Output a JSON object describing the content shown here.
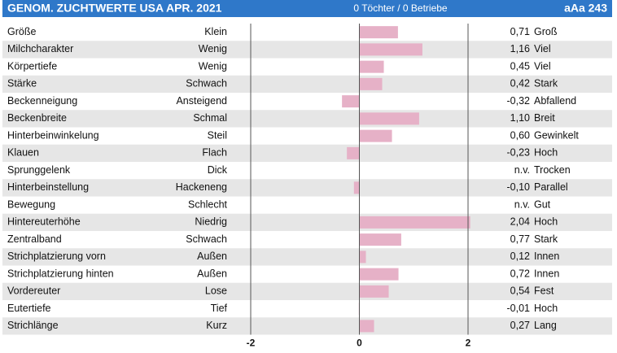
{
  "chart_data": {
    "type": "bar",
    "orientation": "horizontal",
    "title": "GENOM. ZUCHTWERTE USA APR. 2021",
    "subtitle": "0 Töchter / 0 Betriebe",
    "code": "aAa 243",
    "categories": [
      "Größe",
      "Milchcharakter",
      "Körpertiefe",
      "Stärke",
      "Beckenneigung",
      "Beckenbreite",
      "Hinterbeinwinkelung",
      "Klauen",
      "Sprunggelenk",
      "Hinterbeinstellung",
      "Bewegung",
      "Hintereuterhöhe",
      "Zentralband",
      "Strichplatzierung vorn",
      "Strichplatzierung hinten",
      "Vordereuter",
      "Eutertiefe",
      "Strichlänge"
    ],
    "left_labels": [
      "Klein",
      "Wenig",
      "Wenig",
      "Schwach",
      "Ansteigend",
      "Schmal",
      "Steil",
      "Flach",
      "Dick",
      "Hackeneng",
      "Schlecht",
      "Niedrig",
      "Schwach",
      "Außen",
      "Außen",
      "Lose",
      "Tief",
      "Kurz"
    ],
    "right_labels": [
      "Groß",
      "Viel",
      "Viel",
      "Stark",
      "Abfallend",
      "Breit",
      "Gewinkelt",
      "Hoch",
      "Trocken",
      "Parallel",
      "Gut",
      "Hoch",
      "Stark",
      "Innen",
      "Innen",
      "Fest",
      "Hoch",
      "Lang"
    ],
    "values": [
      0.71,
      1.16,
      0.45,
      0.42,
      -0.32,
      1.1,
      0.6,
      -0.23,
      null,
      -0.1,
      null,
      2.04,
      0.77,
      0.12,
      0.72,
      0.54,
      -0.01,
      0.27
    ],
    "value_labels": [
      "0,71",
      "1,16",
      "0,45",
      "0,42",
      "-0,32",
      "1,10",
      "0,60",
      "-0,23",
      "n.v.",
      "-0,10",
      "n.v.",
      "2,04",
      "0,77",
      "0,12",
      "0,72",
      "0,54",
      "-0,01",
      "0,27"
    ],
    "color": "#e6b1c7",
    "xlim": [
      -2,
      2
    ],
    "xticks": [
      -2,
      0,
      2
    ]
  }
}
